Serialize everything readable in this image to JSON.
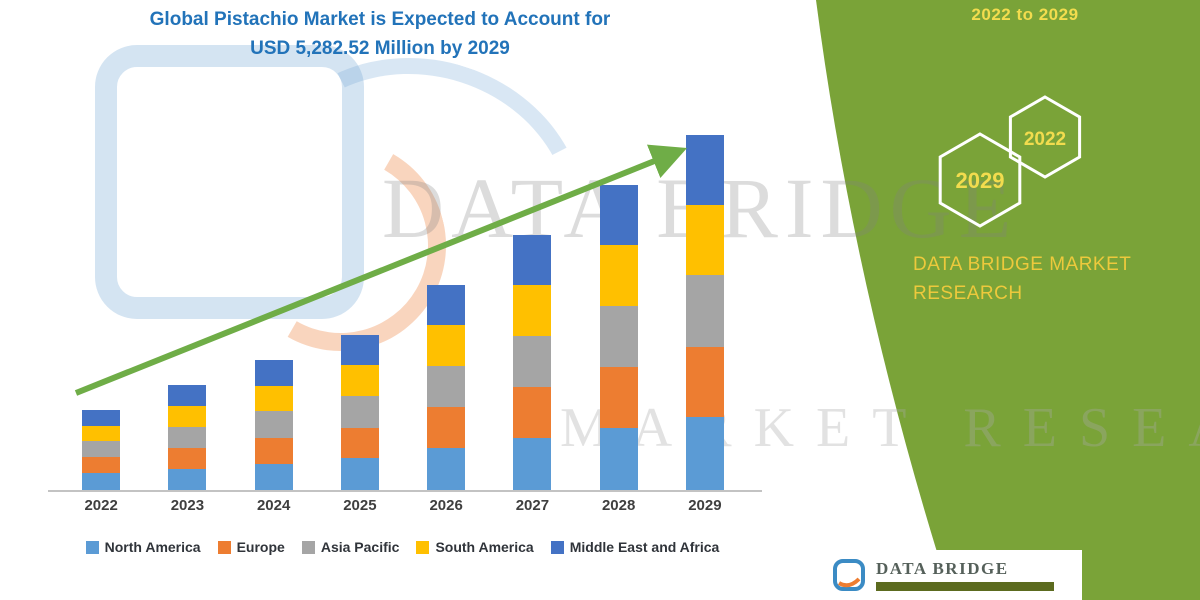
{
  "title": {
    "line1": "Global Pistachio Market is Expected to Account for",
    "line2": "USD 5,282.52 Million by 2029"
  },
  "chart_data": {
    "type": "bar",
    "stacked": true,
    "title": "Global Pistachio Market is Expected to Account for USD 5,282.52 Million by 2029",
    "unit": "USD Million",
    "categories": [
      "2022",
      "2023",
      "2024",
      "2025",
      "2026",
      "2027",
      "2028",
      "2029"
    ],
    "series": [
      {
        "name": "North America",
        "color": "#5B9BD5",
        "values": [
          250,
          320,
          395,
          470,
          625,
          775,
          925,
          1080
        ]
      },
      {
        "name": "Europe",
        "color": "#ED7D31",
        "values": [
          235,
          310,
          385,
          460,
          605,
          755,
          905,
          1055
        ]
      },
      {
        "name": "Asia Pacific",
        "color": "#A5A5A5",
        "values": [
          240,
          315,
          390,
          465,
          615,
          765,
          910,
          1060
        ]
      },
      {
        "name": "South America",
        "color": "#FFC000",
        "values": [
          235,
          310,
          385,
          460,
          605,
          750,
          900,
          1050
        ]
      },
      {
        "name": "Middle East and Africa",
        "color": "#4472C4",
        "values": [
          230,
          305,
          380,
          450,
          600,
          750,
          900,
          1037.52
        ]
      }
    ],
    "totals": [
      1190,
      1560,
      1935,
      2305,
      3050,
      3795,
      4540,
      5282.52
    ],
    "ylim": [
      0,
      5282.52
    ],
    "y_axis_visible": false,
    "grid": false,
    "legend_position": "bottom",
    "annotations": [
      "green upward trend arrow pointing from the 2022 bar to the 2029 bar"
    ]
  },
  "side_panel": {
    "range_label": "2022 to 2029",
    "hexagons": [
      {
        "label": "2029"
      },
      {
        "label": "2022"
      }
    ],
    "brand_line1": "DATA BRIDGE MARKET",
    "brand_line2": "RESEARCH"
  },
  "watermarks": {
    "primary": "DATA BRIDGE",
    "secondary": "MARKET RESEARCH"
  },
  "footer": {
    "brand": "DATA BRIDGE"
  },
  "colors": {
    "title_blue": "#2273B9",
    "arrow_green": "#6FAD47",
    "panel_green": "#7AA338",
    "panel_text_yellow": "#F2DC4E",
    "brand_gold": "#EDC93C",
    "footer_strip_olive": "#5C6B1F"
  }
}
